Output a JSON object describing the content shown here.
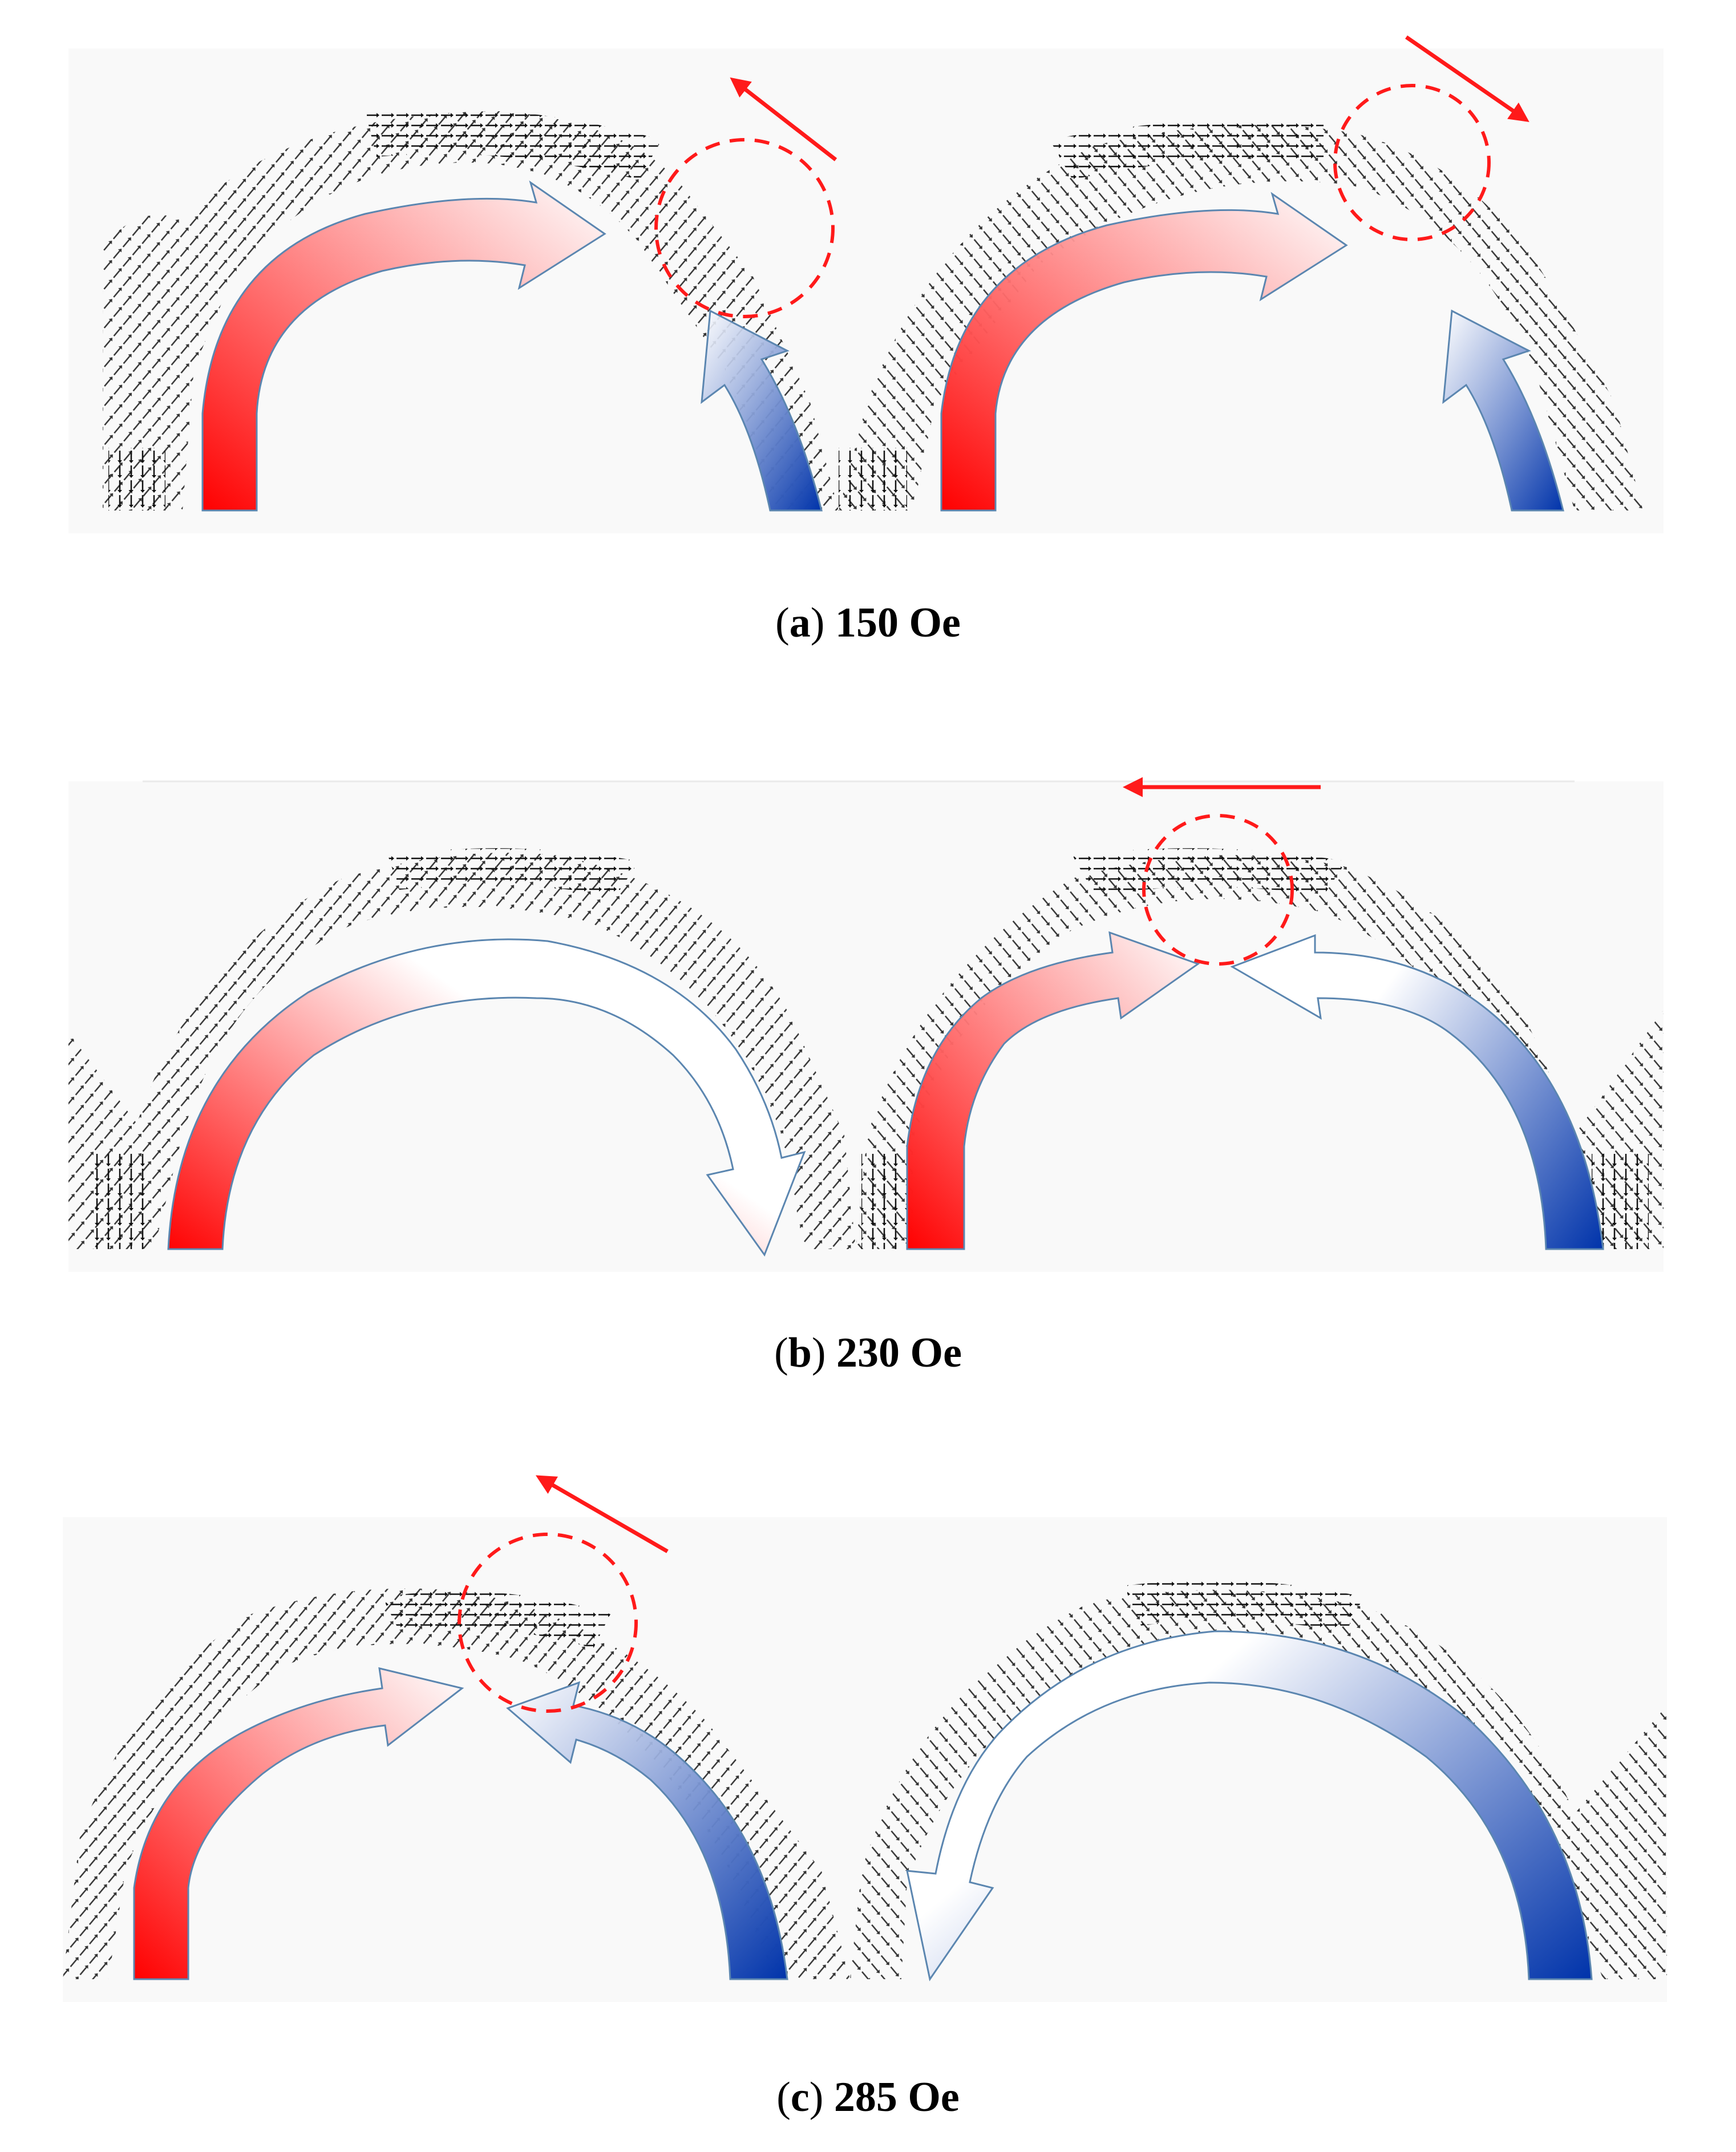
{
  "panels": [
    {
      "letter": "a",
      "label": "150 Oe"
    },
    {
      "letter": "b",
      "label": "230 Oe"
    },
    {
      "letter": "c",
      "label": "285 Oe"
    }
  ],
  "colors": {
    "magnetization_positive": "#ff0000",
    "magnetization_negative": "#0033aa",
    "domain_wall_marker": "#ff1a1a",
    "arrow_outline": "#5b86b0",
    "spin_arrows": "#111111"
  },
  "icons": {
    "domain_wall_marker": "dashed-circle-icon",
    "motion_direction": "red-arrow-icon"
  }
}
